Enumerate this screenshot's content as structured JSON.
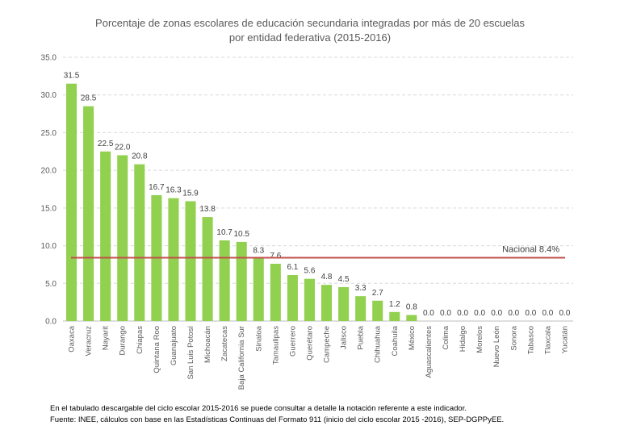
{
  "chart_data": {
    "type": "bar",
    "title_lines": [
      "Porcentaje de zonas escolares de educación secundaria integradas por más de 20 escuelas",
      "por entidad federativa (2015-2016)"
    ],
    "categories": [
      "Oaxaca",
      "Veracruz",
      "Nayarit",
      "Durango",
      "Chiapas",
      "Quintana Roo",
      "Guanajuato",
      "San Luis Potosí",
      "Michoacán",
      "Zacatecas",
      "Baja California Sur",
      "Sinaloa",
      "Tamaulipas",
      "Guerrero",
      "Querétaro",
      "Campeche",
      "Jalisco",
      "Puebla",
      "Chihuahua",
      "Coahuila",
      "México",
      "Aguascalientes",
      "Colima",
      "Hidalgo",
      "Morelos",
      "Nuevo León",
      "Sonora",
      "Tabasco",
      "Tlaxcala",
      "Yucatán"
    ],
    "values": [
      31.5,
      28.5,
      22.5,
      22.0,
      20.8,
      16.7,
      16.3,
      15.9,
      13.8,
      10.7,
      10.5,
      8.3,
      7.6,
      6.1,
      5.6,
      4.8,
      4.5,
      3.3,
      2.7,
      1.2,
      0.8,
      0.0,
      0.0,
      0.0,
      0.0,
      0.0,
      0.0,
      0.0,
      0.0,
      0.0
    ],
    "ylim": [
      0,
      35
    ],
    "yticks": [
      "0.0",
      "5.0",
      "10.0",
      "15.0",
      "20.0",
      "25.0",
      "30.0",
      "35.0"
    ],
    "grid": true,
    "bar_color": "#92d050",
    "reference_line": {
      "label": "Nacional 8.4%",
      "value": 8.4,
      "color": "#c0504d"
    }
  },
  "footnotes": [
    "En el tabulado descargable del ciclo escolar 2015-2016 se puede consultar a detalle la notación referente a este indicador.",
    "Fuente: INEE, cálculos con base en las Estadísticas Continuas del Formato 911 (inicio del ciclo escolar 2015 -2016), SEP-DGPPyEE."
  ]
}
